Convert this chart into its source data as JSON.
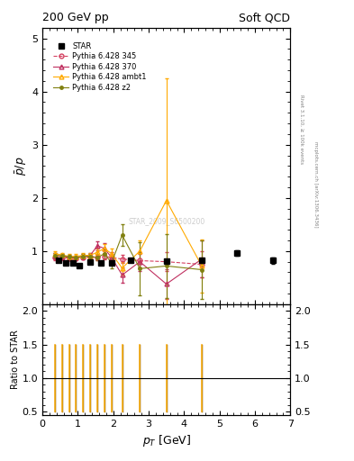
{
  "title_left": "200 GeV pp",
  "title_right": "Soft QCD",
  "ylabel_main": "$\\bar{p}/p$",
  "ylabel_ratio": "Ratio to STAR",
  "xlabel": "$p_T$ [GeV]",
  "right_label": "mcplots.cern.ch [arXiv:1306.3436]",
  "right_label2": "Rivet 3.1.10, ≥ 100k events",
  "watermark": "STAR_2009_S6500200",
  "xlim": [
    0,
    7
  ],
  "ylim_main": [
    0.0,
    5.2
  ],
  "ylim_ratio": [
    0.45,
    2.1
  ],
  "yticks_main": [
    1,
    2,
    3,
    4,
    5
  ],
  "yticks_ratio": [
    0.5,
    1.0,
    1.5,
    2.0
  ],
  "star_x": [
    0.45,
    0.65,
    0.85,
    1.05,
    1.35,
    1.65,
    1.95,
    2.5,
    3.5,
    4.5,
    5.5,
    6.5
  ],
  "star_y": [
    0.82,
    0.78,
    0.78,
    0.73,
    0.79,
    0.78,
    0.78,
    0.82,
    0.81,
    0.82,
    0.96,
    0.82
  ],
  "star_yerr": [
    0.03,
    0.02,
    0.02,
    0.02,
    0.02,
    0.02,
    0.02,
    0.03,
    0.04,
    0.04,
    0.05,
    0.06
  ],
  "p345_x": [
    0.35,
    0.55,
    0.75,
    0.95,
    1.15,
    1.35,
    1.55,
    1.75,
    1.95,
    2.25,
    2.75,
    3.5,
    4.5
  ],
  "p345_y": [
    0.88,
    0.88,
    0.87,
    0.87,
    0.88,
    0.89,
    0.88,
    0.9,
    0.88,
    0.85,
    0.82,
    0.8,
    0.75
  ],
  "p345_yerr": [
    0.06,
    0.05,
    0.04,
    0.04,
    0.04,
    0.05,
    0.05,
    0.06,
    0.07,
    0.08,
    0.12,
    0.18,
    0.25
  ],
  "p345_color": "#d44060",
  "p345_ls": "--",
  "p370_x": [
    0.35,
    0.55,
    0.75,
    0.95,
    1.15,
    1.35,
    1.55,
    1.75,
    1.95,
    2.25,
    2.75,
    3.5,
    4.5
  ],
  "p370_y": [
    0.92,
    0.9,
    0.88,
    0.88,
    0.9,
    0.92,
    1.1,
    1.05,
    0.88,
    0.55,
    0.8,
    0.38,
    0.85
  ],
  "p370_yerr": [
    0.05,
    0.04,
    0.04,
    0.04,
    0.04,
    0.05,
    0.08,
    0.1,
    0.1,
    0.15,
    0.18,
    0.28,
    0.35
  ],
  "p370_color": "#c03060",
  "p370_ls": "-",
  "pambt_x": [
    0.35,
    0.55,
    0.75,
    0.95,
    1.15,
    1.35,
    1.55,
    1.75,
    1.95,
    2.25,
    2.75,
    3.5,
    4.5
  ],
  "pambt_y": [
    0.95,
    0.93,
    0.9,
    0.9,
    0.92,
    0.92,
    0.98,
    1.05,
    0.95,
    0.68,
    1.0,
    1.95,
    0.72
  ],
  "pambt_yerr": [
    0.05,
    0.04,
    0.04,
    0.04,
    0.04,
    0.05,
    0.06,
    0.08,
    0.1,
    0.12,
    0.2,
    2.3,
    0.5
  ],
  "pambt_color": "#ffaa00",
  "pambt_ls": "-",
  "pz2_x": [
    0.35,
    0.55,
    0.75,
    0.95,
    1.15,
    1.35,
    1.55,
    1.75,
    1.95,
    2.25,
    2.75,
    3.5,
    4.5
  ],
  "pz2_y": [
    0.92,
    0.91,
    0.89,
    0.88,
    0.9,
    0.9,
    0.88,
    0.95,
    0.78,
    1.3,
    0.67,
    0.72,
    0.65
  ],
  "pz2_yerr": [
    0.05,
    0.04,
    0.04,
    0.04,
    0.04,
    0.05,
    0.06,
    0.08,
    0.1,
    0.2,
    0.5,
    0.6,
    0.55
  ],
  "pz2_color": "#808010",
  "pz2_ls": "-",
  "ratio_p345_x": [
    0.35,
    0.55,
    0.75,
    0.95,
    1.15,
    1.35,
    1.55,
    1.75,
    1.95,
    2.25,
    2.75,
    3.5,
    4.5
  ],
  "ratio_p345_lo": [
    0.5,
    0.5,
    0.5,
    0.5,
    0.5,
    0.5,
    0.5,
    0.5,
    0.5,
    0.5,
    0.5,
    0.5,
    0.5
  ],
  "ratio_p345_hi": [
    1.5,
    1.5,
    1.5,
    1.5,
    1.5,
    1.5,
    1.5,
    1.5,
    1.5,
    1.5,
    1.5,
    1.5,
    1.5
  ],
  "ratio_pambt_x": [
    0.35,
    0.55,
    0.75,
    0.95,
    1.15,
    1.35,
    1.55,
    1.75,
    1.95,
    2.25,
    2.75,
    3.5,
    4.5
  ],
  "ratio_pambt_lo": [
    0.5,
    0.5,
    0.5,
    0.5,
    0.5,
    0.5,
    0.5,
    0.5,
    0.5,
    0.5,
    0.5,
    0.5,
    0.5
  ],
  "ratio_pambt_hi": [
    1.5,
    1.5,
    1.5,
    1.5,
    1.5,
    1.5,
    1.5,
    1.5,
    1.5,
    1.5,
    1.5,
    1.5,
    1.5
  ],
  "ratio_pz2_x": [
    0.35,
    0.55,
    0.75,
    0.95,
    1.15,
    1.35,
    1.55,
    1.75,
    1.95,
    2.25,
    2.75,
    3.5,
    4.5
  ],
  "ratio_pz2_lo": [
    0.5,
    0.5,
    0.5,
    0.5,
    0.5,
    0.5,
    0.5,
    0.5,
    0.5,
    0.5,
    0.5,
    0.5,
    0.5
  ],
  "ratio_pz2_hi": [
    1.5,
    1.5,
    1.5,
    1.5,
    1.5,
    1.5,
    1.5,
    1.5,
    1.5,
    1.5,
    1.5,
    1.5,
    1.5
  ]
}
